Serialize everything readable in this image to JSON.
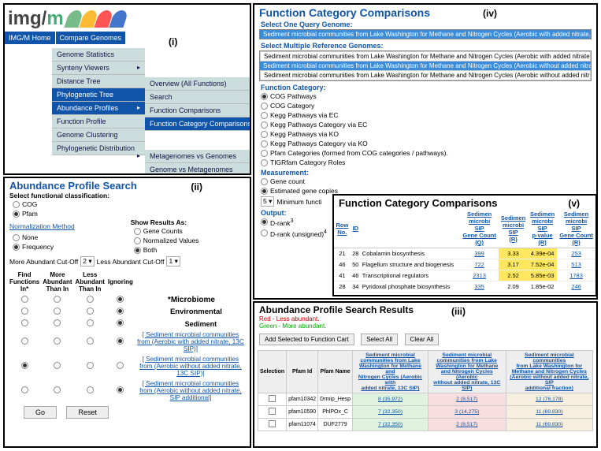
{
  "logo": {
    "prefix": "img/",
    "suffix": "m"
  },
  "panel_i": {
    "roman": "(i)",
    "tabs": {
      "home": "IMG/M Home",
      "compare": "Compare Genomes"
    },
    "col1": [
      "Genome Statistics",
      "Synteny Viewers",
      "Distance Tree",
      "Phylogenetic Tree",
      "Abundance Profiles",
      "Function Profile",
      "Genome Clustering",
      "Phylogenetic Distribution"
    ],
    "col1_hl_idx": [
      3,
      4
    ],
    "col1_arrow_idx": [
      1,
      4,
      7
    ],
    "col2": [
      "Overview (All Functions)",
      "Search",
      "Function Comparisons",
      "Function Category Comparisons"
    ],
    "col2_hl_idx": [
      3
    ],
    "col3": [
      "Metagenomes vs Genomes",
      "Genome vs Metagenomes"
    ]
  },
  "panel_ii": {
    "roman": "(ii)",
    "title": "Abundance Profile Search",
    "sfc": "Select functional classification:",
    "cog": "COG",
    "pfam": "Pfam",
    "norm_link": "Normalization Method",
    "show_as": "Show Results As:",
    "gene_counts": "Gene Counts",
    "normalized": "Normalized Values",
    "both": "Both",
    "none": "None",
    "freq": "Frequency",
    "more_cut": "More Abundant Cut-Off",
    "more_val": "2",
    "less_cut": "Less Abundant Cut-Off",
    "less_val": "1",
    "cols": [
      "Find\nFunctions\nIn*",
      "More\nAbundant\nThan In",
      "Less\nAbundant\nThan In",
      "Ignoring"
    ],
    "microbiome": "*Microbiome",
    "env": "Environmental",
    "sed": "Sediment",
    "rows": [
      "[ Sediment microbial communities from (Aerobic with added nitrate, 13C SIP)]",
      "[ Sediment microbial communities from (Aerobic without added nitrate, 13C SIP)]",
      "[ Sediment microbial communities from (Aerobic without added nitrate, SIP additional]"
    ],
    "row_selected_col": [
      3,
      0,
      3
    ],
    "go": "Go",
    "reset": "Reset"
  },
  "panel_iv": {
    "roman": "(iv)",
    "title": "Function Category Comparisons",
    "sel_one": "Select One Query Genome:",
    "q_genome": "Sediment microbial communities from Lake Washington for Methane and Nitrogen Cycles (Aerobic with added nitrate, 13C SIP)",
    "sel_multi": "Select Multiple Reference Genomes:",
    "ref_rows": [
      {
        "txt": "Sediment microbial communities from Lake Washington for Methane and Nitrogen Cycles (Aerobic with added nitrate, 13C SIP",
        "sel": false
      },
      {
        "txt": "Sediment microbial communities from Lake Washington for Methane and Nitrogen Cycles (Aerobic without added nitrate, 13C",
        "sel": true
      },
      {
        "txt": "Sediment microbial communities from Lake Washington for Methane and Nitrogen Cycles (Aerobic without added nitrate, SIP a",
        "sel": false
      }
    ],
    "fc": "Function Category:",
    "cats": [
      "COG Pathways",
      "COG Category",
      "Kegg Pathways via EC",
      "Kegg Pathways Category via EC",
      "Kegg Pathways via KO",
      "Kegg Pathways Category via KO",
      "Pfam Categories (formed from COG categories / pathways).",
      "TIGRfam Category Roles"
    ],
    "cat_sel": 0,
    "meas": "Measurement:",
    "meas_opts": [
      "Gene count",
      "Estimated gene copies"
    ],
    "meas_sel": 1,
    "min_val": "5",
    "min_lbl": "Minimum functi",
    "out": "Output:",
    "out_opts": [
      "D-rank",
      "D-rank (unsigned)"
    ],
    "out_sup": [
      "3",
      "4"
    ],
    "out_sel": 0
  },
  "panel_v": {
    "roman": "(v)",
    "title": "Function Category Comparisons",
    "cols": [
      "Row\nNo.",
      "ID",
      "",
      "Sedimen\nmicrobi\nSIP\nGene Count\n(Q)",
      "Sedimen\nmicrobi\nSIP\n(R)",
      "Sedimen\nmicrobi\nSIP\np-value\n(R)",
      "Sedimen\nmicrobi\nSIP\nGene Count\n(R)"
    ],
    "rows": [
      {
        "no": "21",
        "id": "28",
        "name": "Cobalamin biosynthesis",
        "gcq": "399",
        "r": "3.33",
        "pv": "4.39e-04",
        "gcr": "253",
        "hl": true
      },
      {
        "no": "46",
        "id": "50",
        "name": "Flagellum structure and biogenesis",
        "gcq": "722",
        "r": "3.17",
        "pv": "7.52e-04",
        "gcr": "513",
        "hl": true
      },
      {
        "no": "41",
        "id": "46",
        "name": "Transcriptional regulators",
        "gcq": "2313",
        "r": "2.52",
        "pv": "5.85e-03",
        "gcr": "1783",
        "hl": true
      },
      {
        "no": "28",
        "id": "34",
        "name": "Pyridoxal phosphate biosynthesis",
        "gcq": "335",
        "r": "2.09",
        "pv": "1.85e-02",
        "gcr": "246",
        "hl": false
      }
    ]
  },
  "panel_iii": {
    "roman": "(iii)",
    "title": "Abundance Profile Search Results",
    "red": "Red - Less abundant.",
    "green": "Green - More abundant.",
    "btns": [
      "Add Selected to Function Cart",
      "Select All",
      "Clear All"
    ],
    "cols": [
      "Selection",
      "Pfam Id",
      "Pfam Name"
    ],
    "hdrs": [
      "Sediment microbial\ncommunities from Lake\nWashington for Methane and\nNitrogen Cycles (Aerobic with\nadded nitrate, 13C SIP)",
      "Sediment microbial\ncommunities from Lake\nWashington for Methane\nand Nitrogen Cycles (Aerobic\nwithout added nitrate, 13C SIP)",
      "Sediment microbial communities\nfrom Lake Washington for\nMethane and Nitrogen Cycles\n(Aerobic without added nitrate, SIP\nadditional fraction)"
    ],
    "rows": [
      {
        "id": "pfam10342",
        "name": "Drmip_Hesp",
        "v": [
          "8 (35,972)",
          "2 (8,517)",
          "12 (76,178)"
        ]
      },
      {
        "id": "pfam10590",
        "name": "PhlPOx_C",
        "v": [
          "7 (32,350)",
          "3 (14,275)",
          "11 (69,830)"
        ]
      },
      {
        "id": "pfam11074",
        "name": "DUF2779",
        "v": [
          "7 (32,350)",
          "2 (8,517)",
          "11 (69,830)"
        ]
      }
    ]
  }
}
